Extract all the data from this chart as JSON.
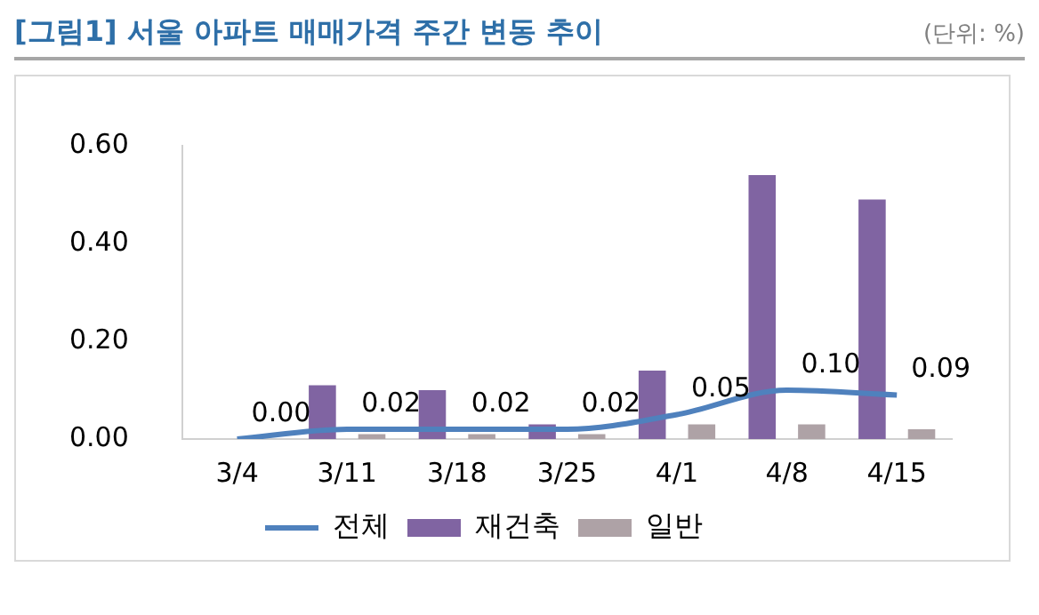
{
  "chart_data": {
    "type": "bar",
    "title": "[그림1] 서울 아파트 매매가격 주간 변동 추이",
    "annotations": [
      "(단위: %)"
    ],
    "categories": [
      "3/4",
      "3/11",
      "3/18",
      "3/25",
      "4/1",
      "4/8",
      "4/15"
    ],
    "series": [
      {
        "name": "재건축",
        "color": "#8064a2",
        "values": [
          0.0,
          0.11,
          0.1,
          0.03,
          0.14,
          0.54,
          0.49
        ]
      },
      {
        "name": "일반",
        "color": "#aea2a6",
        "values": [
          0.0,
          0.01,
          0.01,
          0.01,
          0.03,
          0.03,
          0.02
        ]
      },
      {
        "name": "전체",
        "type": "line",
        "color": "#4f81bd",
        "values": [
          0.0,
          0.02,
          0.02,
          0.02,
          0.05,
          0.1,
          0.09
        ],
        "value_labels": [
          "0.00",
          "0.02",
          "0.02",
          "0.02",
          "0.05",
          "0.10",
          "0.09"
        ]
      }
    ],
    "ylim": [
      0,
      0.6
    ],
    "yticks": [
      {
        "value": 0,
        "label": "0.00"
      },
      {
        "value": 0.2,
        "label": "0.20"
      },
      {
        "value": 0.4,
        "label": "0.40"
      },
      {
        "value": 0.6,
        "label": "0.60"
      }
    ],
    "grid": false,
    "legend": "bottom",
    "marker": "none"
  }
}
